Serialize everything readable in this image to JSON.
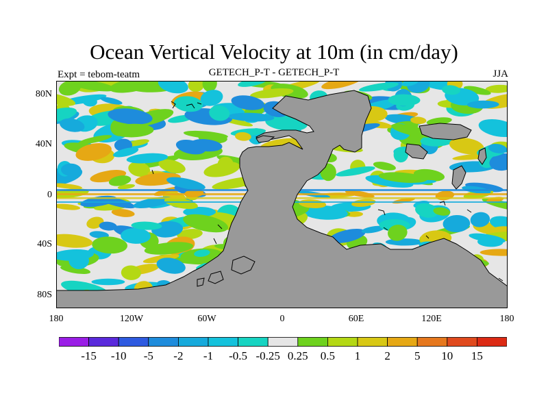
{
  "title": "Ocean Vertical Velocity at 10m (in cm/day)",
  "subtitle_left": "Expt = tebom-teatm",
  "subtitle_center": "GETECH_P-T - GETECH_P-T",
  "subtitle_right": "JJA",
  "map": {
    "lat_labels": [
      "80N",
      "40N",
      "0",
      "40S",
      "80S"
    ],
    "lon_labels": [
      "180",
      "120W",
      "60W",
      "0",
      "60E",
      "120E",
      "180"
    ],
    "land_color": "#999999"
  },
  "colorbar": {
    "labels": [
      "-15",
      "-10",
      "-5",
      "-2",
      "-1",
      "-0.5",
      "-0.25",
      "0.25",
      "0.5",
      "1",
      "2",
      "5",
      "10",
      "15"
    ],
    "colors": [
      "#9a1ee6",
      "#5a2adc",
      "#2e5ae0",
      "#1e8cdc",
      "#16aadc",
      "#14c2dc",
      "#16d4c2",
      "#e6e6e6",
      "#6ed21e",
      "#b4d814",
      "#d8c814",
      "#e6a814",
      "#e6781e",
      "#e04a1e",
      "#dc2a14"
    ]
  }
}
